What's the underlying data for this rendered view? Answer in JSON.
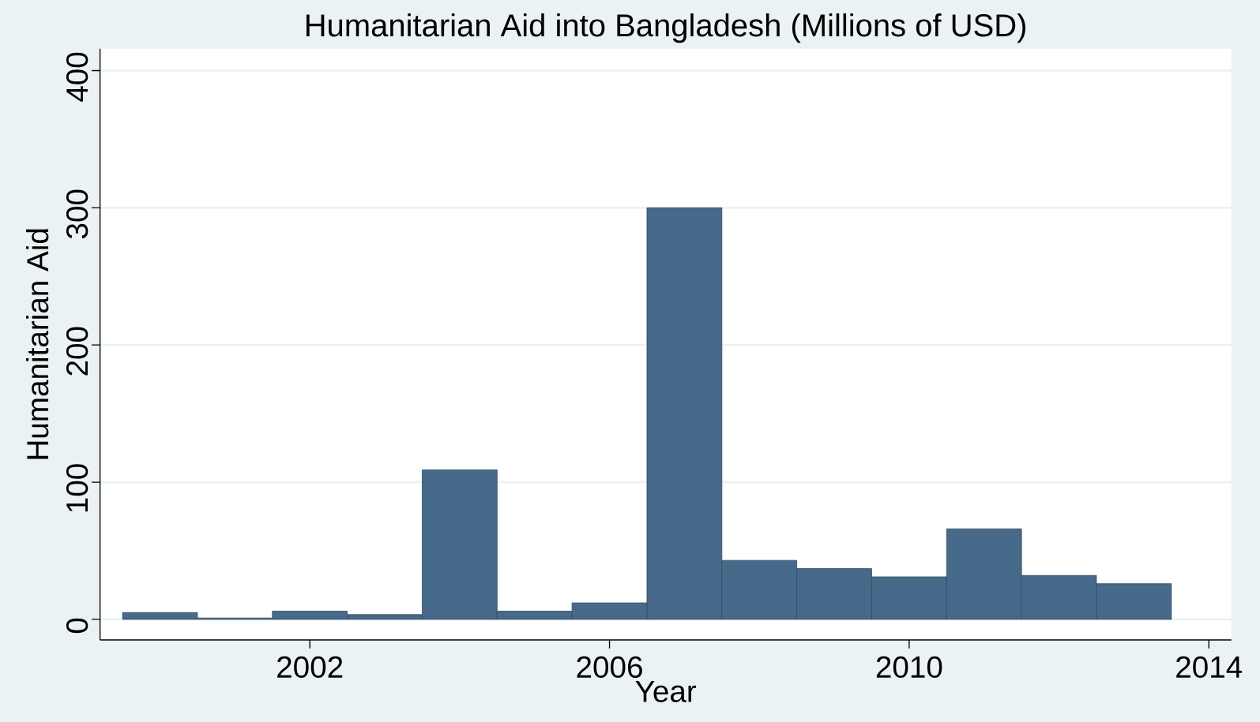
{
  "chart_data": {
    "type": "bar",
    "title": "Humanitarian Aid into Bangladesh (Millions of USD)",
    "xlabel": "Year",
    "ylabel": "Humanitarian Aid",
    "x": [
      2000,
      2001,
      2002,
      2003,
      2004,
      2005,
      2006,
      2007,
      2008,
      2009,
      2010,
      2011,
      2012,
      2013
    ],
    "values": [
      5,
      1,
      6,
      3.5,
      109,
      6,
      12,
      300,
      43,
      37,
      31,
      66,
      32,
      26
    ],
    "color": "#476a8a",
    "xlim": [
      1999.2,
      2014.3
    ],
    "ylim": [
      -15,
      416
    ],
    "xticks": [
      2002,
      2006,
      2010,
      2014
    ],
    "yticks": [
      0,
      100,
      200,
      300,
      400
    ],
    "grid": "y"
  }
}
